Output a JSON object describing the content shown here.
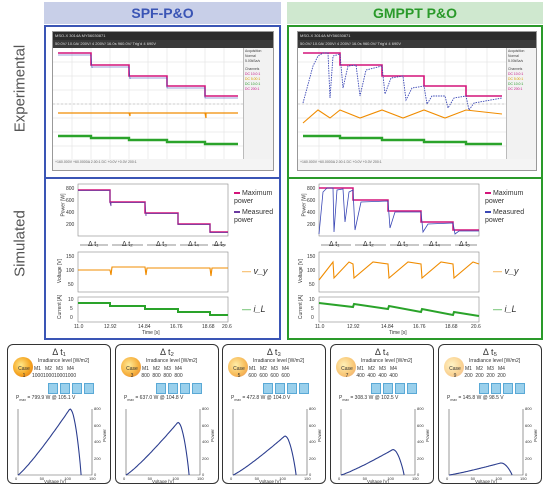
{
  "headers": {
    "left": "SPF-P&O",
    "right": "GMPPT P&O"
  },
  "row_labels": {
    "experimental": "Experimental",
    "simulated": "Simulated"
  },
  "scope": {
    "top_bar": "MSO-X 3014A MY56030871",
    "top_vals": "50.0V/  10.0A/  200V/  4  200V/   16.0s   960.0V/  Trig'd  4   690V",
    "side_title": "Acquisition",
    "side_mode": "Normal",
    "side_rate": "5.00kSa/s",
    "side_channels": "Channels",
    "side_rows": [
      "DC  10.0:1",
      "DC  5.00:1",
      "DC  10.0:1",
      "DC  200:1"
    ],
    "bottom_left": "+160.000V   +60.0000A   2.00:1   DC   +0.0V   +0.0V   200:1"
  },
  "simulated": {
    "power_legend": [
      "Maximum power",
      "Measured power"
    ],
    "delta_labels": [
      "Δ t₁",
      "Δ t₂",
      "Δ t₃",
      "Δ t₄",
      "Δ t₅"
    ],
    "ylabel_power": "Power [W]",
    "ylabel_voltage": "Voltage [V]",
    "ylabel_current": "Current [A]",
    "power_ticks": [
      "800",
      "600",
      "400",
      "200"
    ],
    "voltage_ticks": [
      "150",
      "100",
      "50"
    ],
    "current_ticks": [
      "10",
      "5",
      "0"
    ],
    "x_ticks": [
      "11.0",
      "12.92",
      "14.84",
      "16.76",
      "18.68",
      "20.6"
    ],
    "xlabel": "Time [s]",
    "vy_label": "v_y",
    "il_label": "i_L"
  },
  "colors": {
    "magenta": "#d4147a",
    "blue": "#3a47b5",
    "orange": "#f08c00",
    "green": "#2aa32a",
    "purple": "#6a3aa0"
  },
  "cards": [
    {
      "title": "Δ t₁",
      "case": "1",
      "irr": [
        "1000",
        "1000",
        "1000",
        "1000"
      ],
      "pmax": "799.9 W @ 105.1 V",
      "level": 1.0
    },
    {
      "title": "Δ t₂",
      "case": "3",
      "irr": [
        "800",
        "800",
        "800",
        "800"
      ],
      "pmax": "637.0 W @ 104.8 V",
      "level": 0.8
    },
    {
      "title": "Δ t₃",
      "case": "5",
      "irr": [
        "600",
        "600",
        "600",
        "600"
      ],
      "pmax": "472.8 W @ 104.0 V",
      "level": 0.6
    },
    {
      "title": "Δ t₄",
      "case": "7",
      "irr": [
        "400",
        "400",
        "400",
        "400"
      ],
      "pmax": "308.3 W @ 102.5 V",
      "level": 0.4
    },
    {
      "title": "Δ t₅",
      "case": "9",
      "irr": [
        "200",
        "200",
        "200",
        "200"
      ],
      "pmax": "145.8 W @ 98.5 V",
      "level": 0.2
    }
  ],
  "card_labels": {
    "irr_header": "Irradiance level [W/m2]",
    "cols": [
      "Case",
      "M1",
      "M2",
      "M3",
      "M4"
    ],
    "pmax_prefix": "P",
    "pmax_sub": "max",
    "ylabel": "Power",
    "xlabel": "Voltage [V]",
    "yticks": [
      "800",
      "600",
      "400",
      "200",
      "0"
    ],
    "xticks": [
      "0",
      "50",
      "100",
      "150"
    ]
  }
}
